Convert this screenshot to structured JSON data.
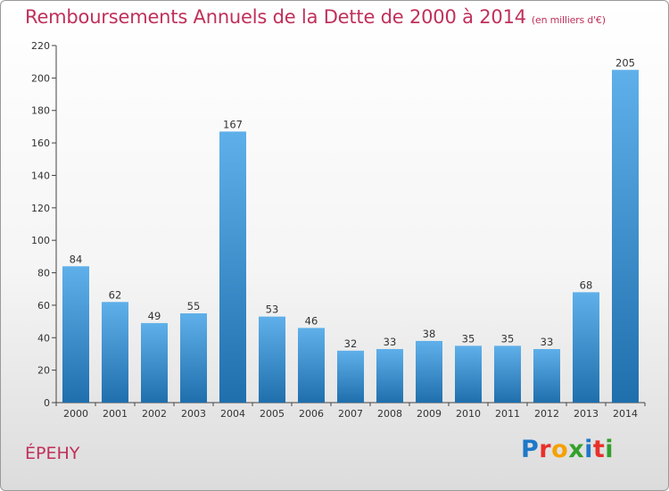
{
  "title": "Remboursements Annuels de la Dette de 2000 à 2014",
  "unit": "(en milliers d'€)",
  "place": "ÉPEHY",
  "logo": {
    "text": "Proxiti",
    "colors": [
      "#1f78c8",
      "#e8302b",
      "#f5a100",
      "#33a02c",
      "#1f78c8",
      "#e8302b",
      "#33a02c"
    ]
  },
  "colors": {
    "title": "#c0305a",
    "bar_light": "#5fb0ea",
    "bar_dark": "#1f6fad",
    "axis": "#444444"
  },
  "chart_data": {
    "type": "bar",
    "categories": [
      "2000",
      "2001",
      "2002",
      "2003",
      "2004",
      "2005",
      "2006",
      "2007",
      "2008",
      "2009",
      "2010",
      "2011",
      "2012",
      "2013",
      "2014"
    ],
    "values": [
      84,
      62,
      49,
      55,
      167,
      53,
      46,
      32,
      33,
      38,
      35,
      35,
      33,
      68,
      205
    ],
    "title": "Remboursements Annuels de la Dette de 2000 à 2014",
    "xlabel": "",
    "ylabel": "",
    "ylim": [
      0,
      220
    ],
    "yticks": [
      0,
      20,
      40,
      60,
      80,
      100,
      120,
      140,
      160,
      180,
      200,
      220
    ],
    "grid": false,
    "legend": "none"
  }
}
